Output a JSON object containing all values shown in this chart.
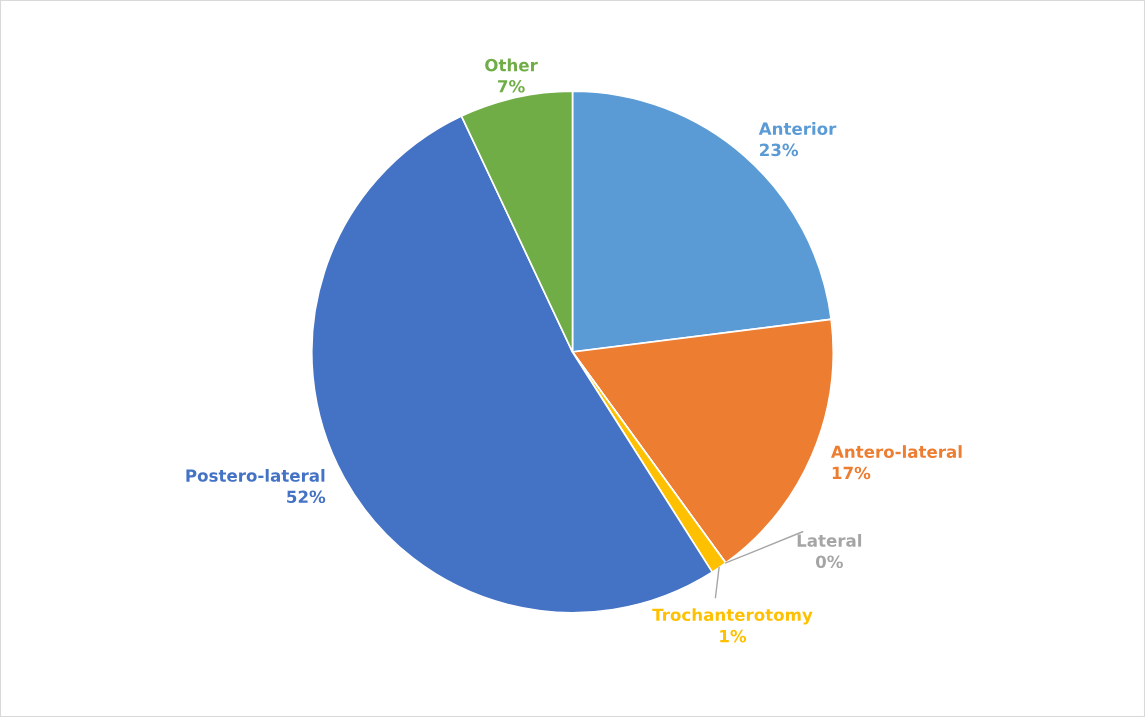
{
  "chart_data": {
    "type": "pie",
    "categories": [
      "Anterior",
      "Antero-lateral",
      "Lateral",
      "Trochanterotomy",
      "Postero-lateral",
      "Other"
    ],
    "values": [
      23,
      17,
      0,
      1,
      52,
      7
    ],
    "colors": [
      "#5b9bd5",
      "#ed7d31",
      "#a5a5a5",
      "#ffc000",
      "#4472c4",
      "#70ad47"
    ],
    "value_labels": [
      "23%",
      "17%",
      "0%",
      "1%",
      "52%",
      "7%"
    ]
  }
}
